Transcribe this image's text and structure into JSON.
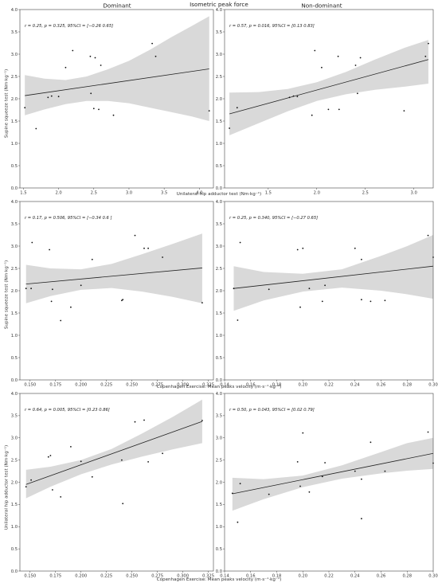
{
  "figure": {
    "title": "Isometric peak force",
    "col_titles": [
      "Dominant",
      "Non-dominant"
    ],
    "row_ylabels": [
      "Supine squeeze test (Nm·kg⁻¹)",
      "Supine squeeze test (Nm·kg⁻¹)",
      "Unilateral hip adductor test (Nm·kg⁻¹)"
    ],
    "row_xlabels": [
      "Unilateral hip adductor test (Nm·kg⁻¹)",
      "Copenhagen Exercise:  Mean peaks velocity (m·s⁻¹·kg⁻¹)",
      "Copenhagen Exercise:  Mean peaks velocity (m·s⁻¹·kg⁻¹)"
    ]
  },
  "chart_data": [
    {
      "type": "scatter",
      "panel": "row1-dominant",
      "annotation": "r = 0.25, p = 0.325, 95%CI = [−0.26  0.65]",
      "xlim": [
        1.45,
        4.2
      ],
      "ylim": [
        0.0,
        4.0
      ],
      "xticks": [
        1.5,
        2.0,
        2.5,
        3.0,
        3.5,
        4.0
      ],
      "xtick_labels": [
        "1.5",
        "2.0",
        "2.5",
        "3.0",
        "3.5",
        "4.0"
      ],
      "yticks": [
        0.0,
        0.5,
        1.0,
        1.5,
        2.0,
        2.5,
        3.0,
        3.5,
        4.0
      ],
      "ytick_labels": [
        "0.0",
        "0.5",
        "1.0",
        "1.5",
        "2.0",
        "2.5",
        "3.0",
        "3.5",
        "4.0"
      ],
      "x": [
        1.52,
        1.68,
        1.85,
        1.9,
        2.0,
        2.1,
        2.2,
        2.45,
        2.46,
        2.5,
        2.52,
        2.57,
        2.6,
        2.78,
        3.33,
        3.38,
        4.14
      ],
      "y": [
        1.8,
        1.33,
        2.03,
        2.06,
        2.05,
        2.7,
        3.08,
        2.95,
        2.12,
        1.78,
        2.92,
        1.76,
        2.75,
        1.63,
        3.24,
        2.95,
        1.73
      ],
      "fit": {
        "x": [
          1.52,
          4.14
        ],
        "y": [
          2.07,
          2.67
        ]
      },
      "band": {
        "x": [
          1.52,
          1.8,
          2.1,
          2.4,
          2.7,
          3.0,
          3.3,
          3.6,
          3.9,
          4.14
        ],
        "lower": [
          1.63,
          1.76,
          1.88,
          1.95,
          1.95,
          1.9,
          1.8,
          1.7,
          1.6,
          1.5
        ],
        "upper": [
          2.53,
          2.45,
          2.42,
          2.5,
          2.66,
          2.85,
          3.1,
          3.38,
          3.64,
          3.85
        ]
      }
    },
    {
      "type": "scatter",
      "panel": "row1-nondominant",
      "annotation": "r = 0.57, p = 0.016, 95%CI = [0.13 0.83]",
      "xlim": [
        1.05,
        3.2
      ],
      "ylim": [
        0.0,
        4.0
      ],
      "xticks": [
        1.5,
        2.0,
        2.5,
        3.0
      ],
      "xtick_labels": [
        "1.5",
        "2.0",
        "2.5",
        "3.0"
      ],
      "yticks": [
        0.0,
        0.5,
        1.0,
        1.5,
        2.0,
        2.5,
        3.0,
        3.5,
        4.0
      ],
      "ytick_labels": [
        "0.0",
        "0.5",
        "1.0",
        "1.5",
        "2.0",
        "2.5",
        "3.0",
        "3.5",
        "4.0"
      ],
      "x": [
        1.1,
        1.18,
        1.72,
        1.76,
        1.8,
        1.95,
        1.98,
        2.05,
        2.12,
        2.22,
        2.23,
        2.4,
        2.42,
        2.45,
        2.9,
        3.12,
        3.15
      ],
      "y": [
        1.34,
        1.8,
        2.03,
        2.06,
        2.05,
        1.63,
        3.08,
        2.7,
        1.76,
        2.95,
        1.76,
        2.75,
        2.12,
        2.92,
        1.73,
        2.95,
        3.24
      ],
      "fit": {
        "x": [
          1.1,
          3.15
        ],
        "y": [
          1.66,
          2.88
        ]
      },
      "band": {
        "x": [
          1.1,
          1.4,
          1.7,
          2.0,
          2.3,
          2.6,
          2.9,
          3.15
        ],
        "lower": [
          1.18,
          1.45,
          1.72,
          1.95,
          2.1,
          2.2,
          2.27,
          2.34
        ],
        "upper": [
          2.14,
          2.15,
          2.22,
          2.37,
          2.6,
          2.88,
          3.14,
          3.32
        ]
      }
    },
    {
      "type": "scatter",
      "panel": "row2-dominant",
      "annotation": "r = 0.17, p = 0.506, 95%CI = [−0.34  0.6 ]",
      "xlim": [
        0.14,
        0.33
      ],
      "ylim": [
        0.0,
        4.0
      ],
      "xticks": [
        0.15,
        0.175,
        0.2,
        0.225,
        0.25,
        0.275,
        0.3,
        0.325
      ],
      "xtick_labels": [
        "0.150",
        "0.175",
        "0.200",
        "0.225",
        "0.250",
        "0.275",
        "0.300",
        "0.325"
      ],
      "yticks": [
        0.0,
        0.5,
        1.0,
        1.5,
        2.0,
        2.5,
        3.0,
        3.5,
        4.0
      ],
      "ytick_labels": [
        "0.0",
        "0.5",
        "1.0",
        "1.5",
        "2.0",
        "2.5",
        "3.0",
        "3.5",
        "4.0"
      ],
      "x": [
        0.146,
        0.151,
        0.152,
        0.169,
        0.171,
        0.172,
        0.18,
        0.19,
        0.2,
        0.211,
        0.24,
        0.241,
        0.253,
        0.262,
        0.266,
        0.28,
        0.319
      ],
      "y": [
        2.05,
        2.05,
        3.08,
        2.92,
        1.76,
        2.03,
        1.33,
        1.63,
        2.12,
        2.7,
        1.78,
        1.8,
        3.24,
        2.95,
        2.95,
        2.75,
        1.73
      ],
      "fit": {
        "x": [
          0.146,
          0.319
        ],
        "y": [
          2.15,
          2.51
        ]
      },
      "band": {
        "x": [
          0.146,
          0.17,
          0.2,
          0.23,
          0.26,
          0.29,
          0.319
        ],
        "lower": [
          1.72,
          1.88,
          2.02,
          2.06,
          1.98,
          1.86,
          1.72
        ],
        "upper": [
          2.58,
          2.5,
          2.48,
          2.6,
          2.82,
          3.05,
          3.28
        ]
      }
    },
    {
      "type": "scatter",
      "panel": "row2-nondominant",
      "annotation": "r = 0.25, p = 0.340, 95%CI = [−0.27  0.65]",
      "xlim": [
        0.14,
        0.3
      ],
      "ylim": [
        0.0,
        4.0
      ],
      "xticks": [
        0.14,
        0.16,
        0.18,
        0.2,
        0.22,
        0.24,
        0.26,
        0.28,
        0.3
      ],
      "xtick_labels": [
        "0.14",
        "0.16",
        "0.18",
        "0.20",
        "0.22",
        "0.24",
        "0.26",
        "0.28",
        "0.30"
      ],
      "yticks": [
        0.0,
        0.5,
        1.0,
        1.5,
        2.0,
        2.5,
        3.0,
        3.5,
        4.0
      ],
      "ytick_labels": [
        "0.0",
        "0.5",
        "1.0",
        "1.5",
        "2.0",
        "2.5",
        "3.0",
        "3.5",
        "4.0"
      ],
      "x": [
        0.147,
        0.15,
        0.152,
        0.174,
        0.196,
        0.198,
        0.2,
        0.205,
        0.215,
        0.217,
        0.24,
        0.245,
        0.252,
        0.263,
        0.245,
        0.296,
        0.3
      ],
      "y": [
        2.05,
        1.34,
        3.08,
        2.03,
        2.92,
        1.63,
        2.95,
        2.05,
        1.76,
        2.12,
        2.95,
        2.7,
        1.76,
        1.78,
        1.8,
        3.24,
        2.75
      ],
      "fit": {
        "x": [
          0.147,
          0.3
        ],
        "y": [
          2.05,
          2.55
        ]
      },
      "band": {
        "x": [
          0.147,
          0.17,
          0.2,
          0.23,
          0.26,
          0.28,
          0.3
        ],
        "lower": [
          1.55,
          1.78,
          1.98,
          2.07,
          2.0,
          1.92,
          1.82
        ],
        "upper": [
          2.55,
          2.42,
          2.38,
          2.48,
          2.78,
          3.0,
          3.25
        ]
      }
    },
    {
      "type": "scatter",
      "panel": "row3-dominant",
      "annotation": "r = 0.64, p = 0.005, 95%CI = [0.23 0.86]",
      "xlim": [
        0.14,
        0.33
      ],
      "ylim": [
        0.0,
        4.0
      ],
      "xticks": [
        0.15,
        0.175,
        0.2,
        0.225,
        0.25,
        0.275,
        0.3,
        0.325
      ],
      "xtick_labels": [
        "0.150",
        "0.175",
        "0.200",
        "0.225",
        "0.250",
        "0.275",
        "0.300",
        "0.325"
      ],
      "yticks": [
        0.0,
        0.5,
        1.0,
        1.5,
        2.0,
        2.5,
        3.0,
        3.5,
        4.0
      ],
      "ytick_labels": [
        "0.0",
        "0.5",
        "1.0",
        "1.5",
        "2.0",
        "2.5",
        "3.0",
        "3.5",
        "4.0"
      ],
      "x": [
        0.146,
        0.151,
        0.168,
        0.17,
        0.172,
        0.18,
        0.19,
        0.2,
        0.211,
        0.24,
        0.241,
        0.253,
        0.262,
        0.266,
        0.28,
        0.319
      ],
      "y": [
        1.9,
        2.05,
        2.57,
        2.6,
        1.83,
        1.67,
        2.8,
        2.47,
        2.12,
        2.5,
        1.52,
        3.36,
        3.4,
        2.46,
        2.65,
        3.39
      ],
      "fit": {
        "x": [
          0.146,
          0.319
        ],
        "y": [
          1.95,
          3.37
        ]
      },
      "band": {
        "x": [
          0.146,
          0.17,
          0.2,
          0.23,
          0.26,
          0.29,
          0.319
        ],
        "lower": [
          1.64,
          1.9,
          2.18,
          2.4,
          2.58,
          2.74,
          2.88
        ],
        "upper": [
          2.28,
          2.35,
          2.5,
          2.75,
          3.1,
          3.47,
          3.86
        ]
      }
    },
    {
      "type": "scatter",
      "panel": "row3-nondominant",
      "annotation": "r = 0.50, p = 0.043, 95%CI = [0.02 0.79]",
      "xlim": [
        0.14,
        0.3
      ],
      "ylim": [
        0.0,
        4.0
      ],
      "xticks": [
        0.14,
        0.16,
        0.18,
        0.2,
        0.22,
        0.24,
        0.26,
        0.28,
        0.3
      ],
      "xtick_labels": [
        "0.14",
        "0.16",
        "0.18",
        "0.20",
        "0.22",
        "0.24",
        "0.26",
        "0.28",
        "0.30"
      ],
      "yticks": [
        0.0,
        0.5,
        1.0,
        1.5,
        2.0,
        2.5,
        3.0,
        3.5,
        4.0
      ],
      "ytick_labels": [
        "0.0",
        "0.5",
        "1.0",
        "1.5",
        "2.0",
        "2.5",
        "3.0",
        "3.5",
        "4.0"
      ],
      "x": [
        0.146,
        0.15,
        0.152,
        0.174,
        0.196,
        0.198,
        0.2,
        0.205,
        0.215,
        0.217,
        0.24,
        0.245,
        0.252,
        0.263,
        0.245,
        0.296,
        0.3
      ],
      "y": [
        1.75,
        1.1,
        1.97,
        1.73,
        2.46,
        1.91,
        3.11,
        1.78,
        2.13,
        2.44,
        2.25,
        2.07,
        2.9,
        2.25,
        1.18,
        3.13,
        2.43
      ],
      "fit": {
        "x": [
          0.146,
          0.3
        ],
        "y": [
          1.74,
          2.65
        ]
      },
      "band": {
        "x": [
          0.146,
          0.17,
          0.2,
          0.23,
          0.26,
          0.28,
          0.3
        ],
        "lower": [
          1.36,
          1.62,
          1.89,
          2.08,
          2.2,
          2.26,
          2.3
        ],
        "upper": [
          2.1,
          2.07,
          2.15,
          2.38,
          2.68,
          2.88,
          3.0
        ]
      }
    }
  ]
}
